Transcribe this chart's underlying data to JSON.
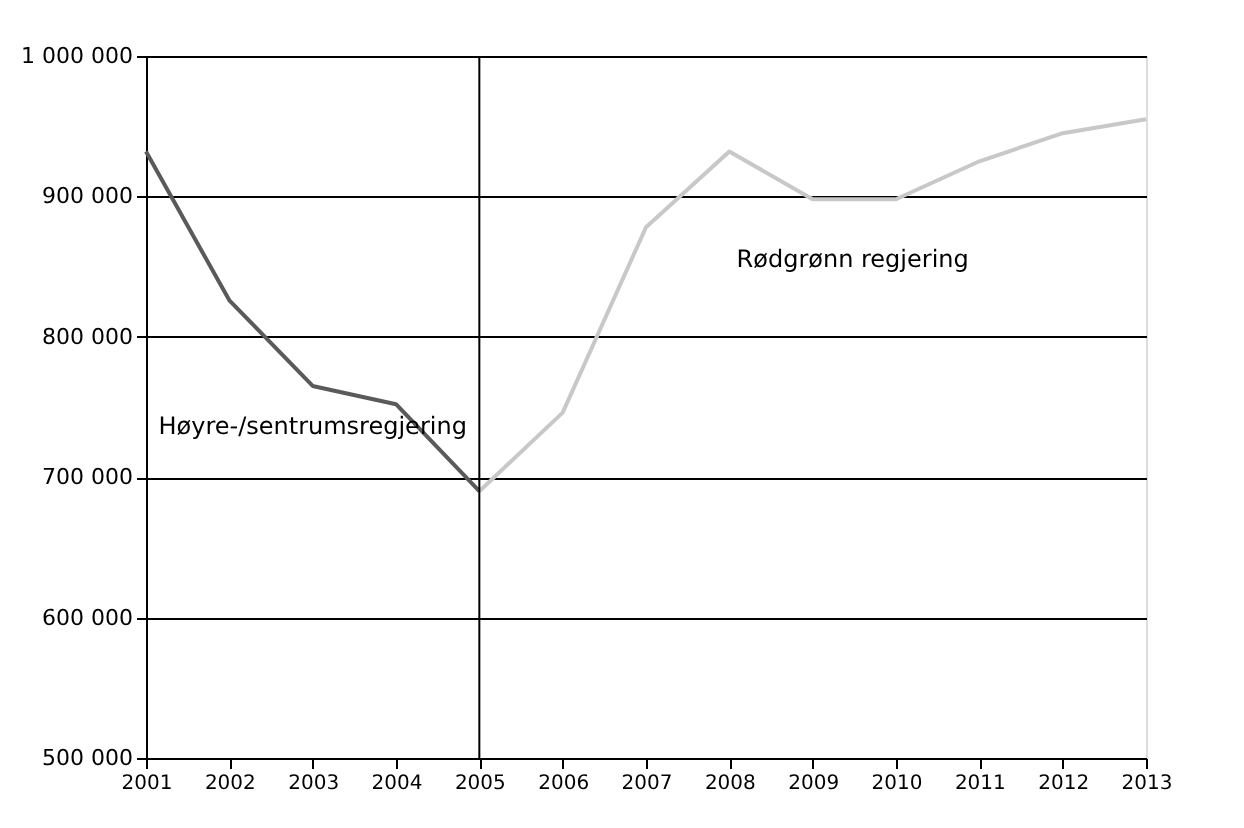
{
  "chart_data": {
    "type": "line",
    "series": [
      {
        "name": "Høyre-/sentrumsregjering",
        "color": "#5a5a5a",
        "x": [
          2001,
          2002,
          2003,
          2004,
          2005
        ],
        "values": [
          932000,
          826000,
          765000,
          752000,
          690000
        ]
      },
      {
        "name": "Rødgrønn regjering",
        "color": "#c8c8c8",
        "x": [
          2005,
          2006,
          2007,
          2008,
          2009,
          2010,
          2011,
          2012,
          2013
        ],
        "values": [
          690000,
          746000,
          878000,
          932000,
          898000,
          898000,
          925000,
          945000,
          955000
        ]
      }
    ],
    "xlim": [
      2001,
      2013
    ],
    "xticks": [
      2001,
      2002,
      2003,
      2004,
      2005,
      2006,
      2007,
      2008,
      2009,
      2010,
      2011,
      2012,
      2013
    ],
    "ylim": [
      500000,
      1000000
    ],
    "yticks": [
      500000,
      600000,
      700000,
      800000,
      900000,
      1000000
    ],
    "ref_lines": [
      {
        "axis": "x",
        "value": 2005,
        "color": "#000000"
      }
    ],
    "grid": "y",
    "legend": false
  }
}
